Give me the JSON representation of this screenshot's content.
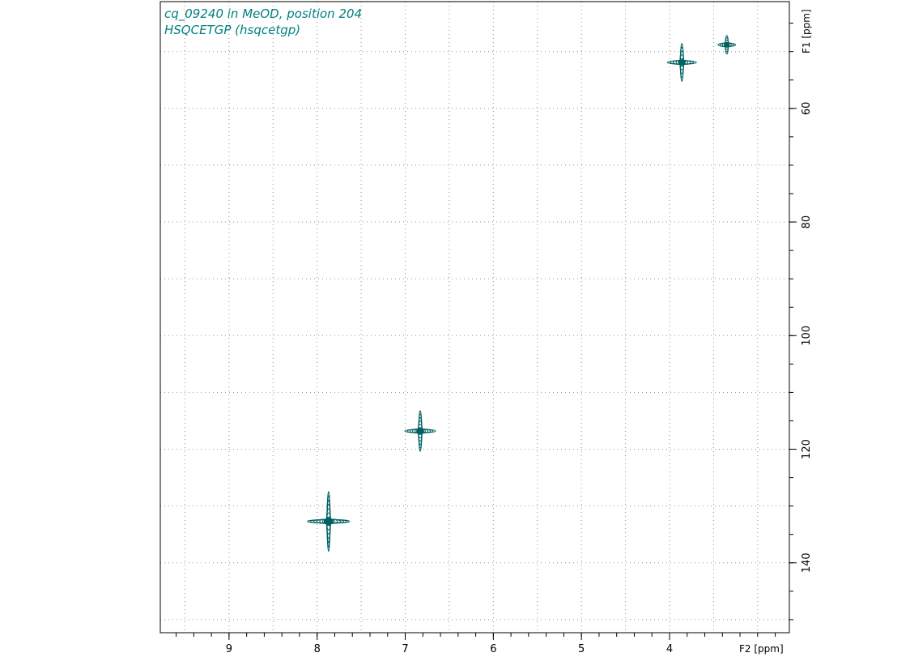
{
  "chart_data": {
    "type": "scatter",
    "title": "cq_09240 in MeOD, position 204",
    "subtitle": "HSQCETGP (hsqcetgp)",
    "xlabel": "F2 [ppm]",
    "ylabel": "F1 [ppm]",
    "xlim": [
      9.78,
      2.64
    ],
    "ylim": [
      41.2,
      152.3
    ],
    "x_ticks": [
      9,
      8,
      7,
      6,
      5,
      4
    ],
    "y_ticks": [
      60,
      80,
      100,
      120,
      140
    ],
    "grid": true,
    "x_minor_step": 0.2,
    "y_minor_step": 5,
    "contour_color": "#006060",
    "title_color": "#008080",
    "series": [
      {
        "points": [
          {
            "x": 3.35,
            "y": 48.8,
            "intensity": 0.25
          },
          {
            "x": 3.86,
            "y": 51.9,
            "intensity": 0.6
          },
          {
            "x": 6.83,
            "y": 116.8,
            "intensity": 0.65
          },
          {
            "x": 7.87,
            "y": 132.7,
            "intensity": 1.0
          }
        ]
      }
    ]
  }
}
